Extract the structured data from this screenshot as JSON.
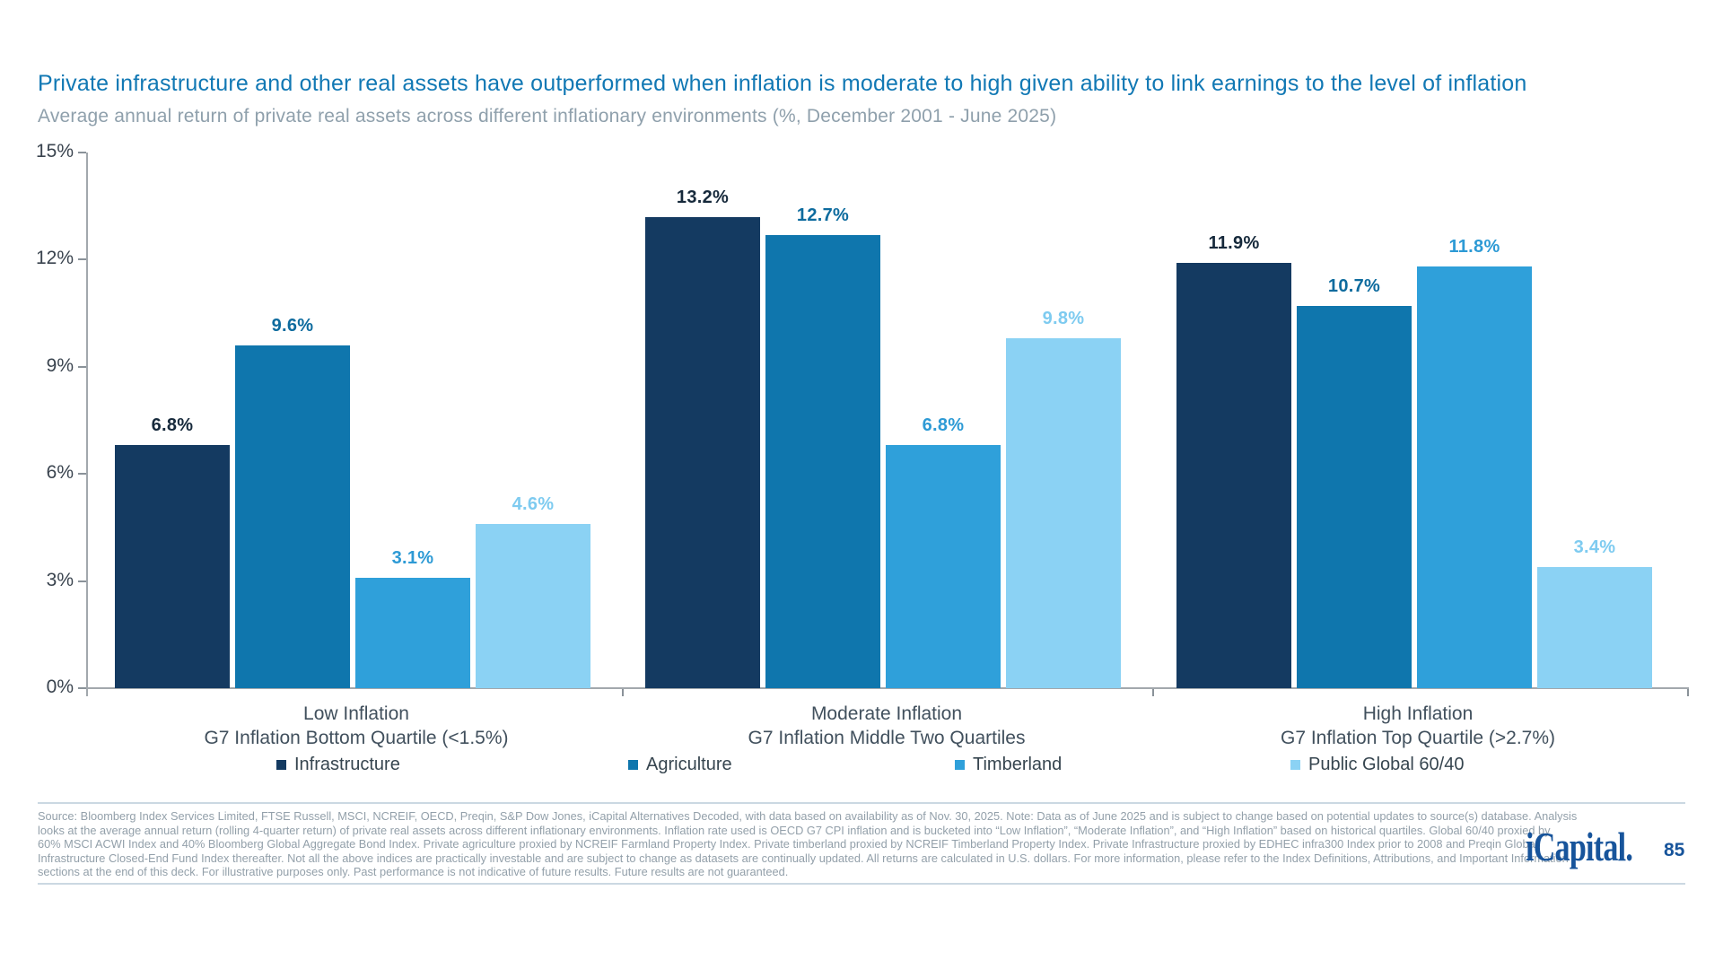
{
  "header": {
    "title": "Private infrastructure and other real assets have outperformed when inflation is moderate to high given ability to link earnings to the level of inflation",
    "subtitle": "Average annual return of private real assets across different inflationary environments (%, December 2001 - June 2025)"
  },
  "chart_data": {
    "type": "bar",
    "title": "Average annual return of private real assets across different inflationary environments (%, December 2001 - June 2025)",
    "categories": [
      {
        "line1": "Low Inflation",
        "line2": "G7 Inflation Bottom Quartile (<1.5%)"
      },
      {
        "line1": "Moderate Inflation",
        "line2": "G7 Inflation Middle Two Quartiles"
      },
      {
        "line1": "High Inflation",
        "line2": "G7 Inflation Top Quartile (>2.7%)"
      }
    ],
    "series": [
      {
        "name": "Infrastructure",
        "color": "#143A61",
        "label_color": "#16293B",
        "values": [
          6.8,
          13.2,
          11.9
        ]
      },
      {
        "name": "Agriculture",
        "color": "#0F76AD",
        "label_color": "#0D6B9E",
        "values": [
          9.6,
          12.7,
          10.7
        ]
      },
      {
        "name": "Timberland",
        "color": "#2FA0DA",
        "label_color": "#2D9AD5",
        "values": [
          3.1,
          6.8,
          11.8
        ]
      },
      {
        "name": "Public Global 60/40",
        "color": "#8BD2F4",
        "label_color": "#7ECBF0",
        "values": [
          4.6,
          9.8,
          3.4
        ]
      }
    ],
    "y_ticks": [
      "15%",
      "12%",
      "9%",
      "6%",
      "3%",
      "0%"
    ],
    "ylim": [
      0,
      15
    ],
    "value_suffix": "%",
    "grid": false,
    "legend_position": "bottom",
    "xlabel": "",
    "ylabel": ""
  },
  "footer": {
    "source_lines": [
      "Source: Bloomberg Index Services Limited, FTSE Russell, MSCI, NCREIF, OECD, Preqin, S&P Dow Jones, iCapital Alternatives Decoded, with data based on availability as of Nov. 30, 2025. Note: Data as of June 2025 and is subject to change based on potential updates to source(s) database. Analysis",
      "looks at the average annual return (rolling 4-quarter return) of private real assets across different inflationary environments. Inflation rate used is OECD G7 CPI inflation and is bucketed into “Low Inflation”, “Moderate Inflation”, and “High Inflation” based on historical quartiles. Global 60/40 proxied by",
      "60% MSCI ACWI Index and 40% Bloomberg Global Aggregate Bond Index. Private agriculture proxied by NCREIF Farmland Property Index. Private timberland proxied by NCREIF Timberland Property Index. Private Infrastructure proxied by EDHEC infra300 Index prior to 2008 and Preqin Global",
      "Infrastructure Closed-End Fund Index thereafter. Not all the above indices are practically investable and are subject to change as datasets are continually updated. All returns are calculated in U.S. dollars. For more information, please refer to the Index Definitions, Attributions, and Important Information",
      "sections at the end of this deck. For illustrative purposes only. Past performance is not indicative of future results. Future results are not guaranteed."
    ],
    "logo_text": "iCapital.",
    "page_number": "85"
  }
}
